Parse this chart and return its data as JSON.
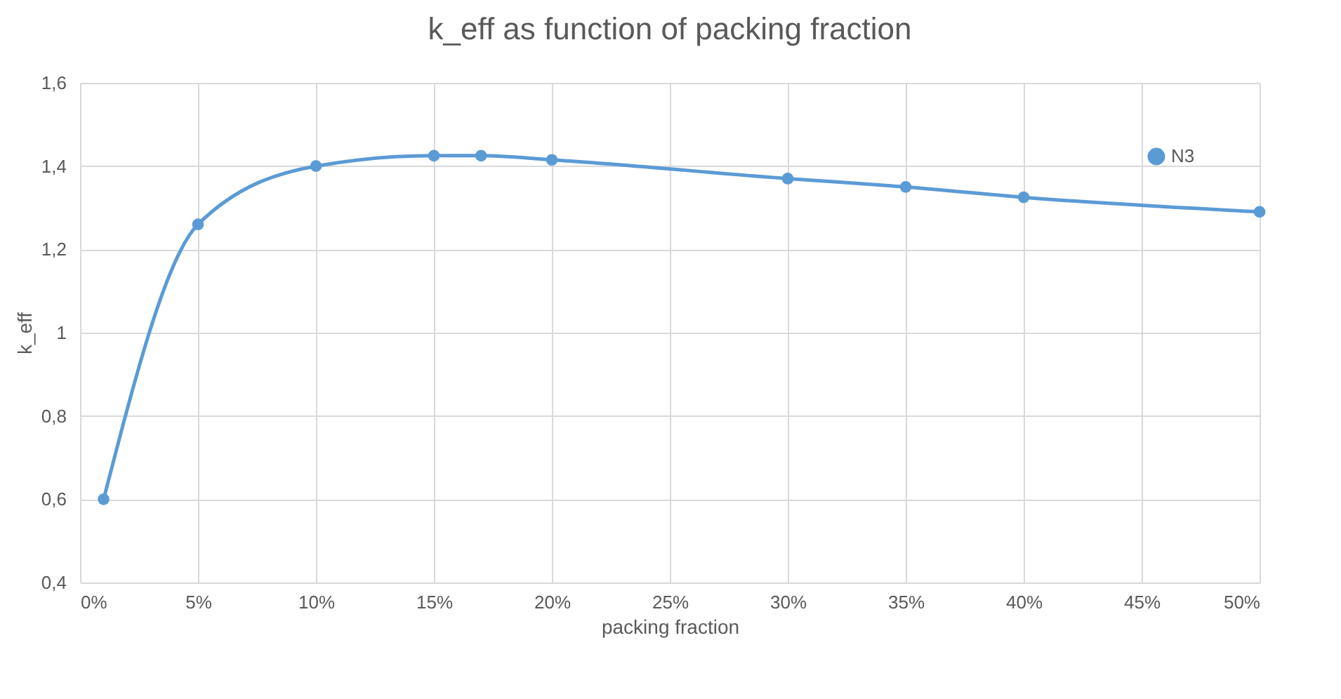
{
  "chart_data": {
    "type": "line",
    "title": "k_eff as function of packing fraction",
    "xlabel": "packing fraction",
    "ylabel": "k_eff",
    "x": [
      1,
      5,
      10,
      15,
      17,
      20,
      30,
      35,
      40,
      50
    ],
    "series": [
      {
        "name": "N3",
        "color": "#5b9bd5",
        "values": [
          0.6,
          1.26,
          1.4,
          1.425,
          1.425,
          1.415,
          1.37,
          1.35,
          1.325,
          1.29
        ]
      }
    ],
    "xlim": [
      0,
      50
    ],
    "xticks": [
      {
        "value": 0,
        "label": "0%"
      },
      {
        "value": 5,
        "label": "5%"
      },
      {
        "value": 10,
        "label": "10%"
      },
      {
        "value": 15,
        "label": "15%"
      },
      {
        "value": 20,
        "label": "20%"
      },
      {
        "value": 25,
        "label": "25%"
      },
      {
        "value": 30,
        "label": "30%"
      },
      {
        "value": 35,
        "label": "35%"
      },
      {
        "value": 40,
        "label": "40%"
      },
      {
        "value": 45,
        "label": "45%"
      },
      {
        "value": 50,
        "label": "50%"
      }
    ],
    "ylim": [
      0.4,
      1.6
    ],
    "yticks": [
      {
        "value": 0.4,
        "label": "0,4"
      },
      {
        "value": 0.6,
        "label": "0,6"
      },
      {
        "value": 0.8,
        "label": "0,8"
      },
      1,
      {
        "value": 1.2,
        "label": "1,2"
      },
      {
        "value": 1.4,
        "label": "1,4"
      },
      {
        "value": 1.6,
        "label": "1,6"
      }
    ],
    "grid": true,
    "legend": "top right",
    "marker": "circle",
    "line_style": "solid"
  }
}
